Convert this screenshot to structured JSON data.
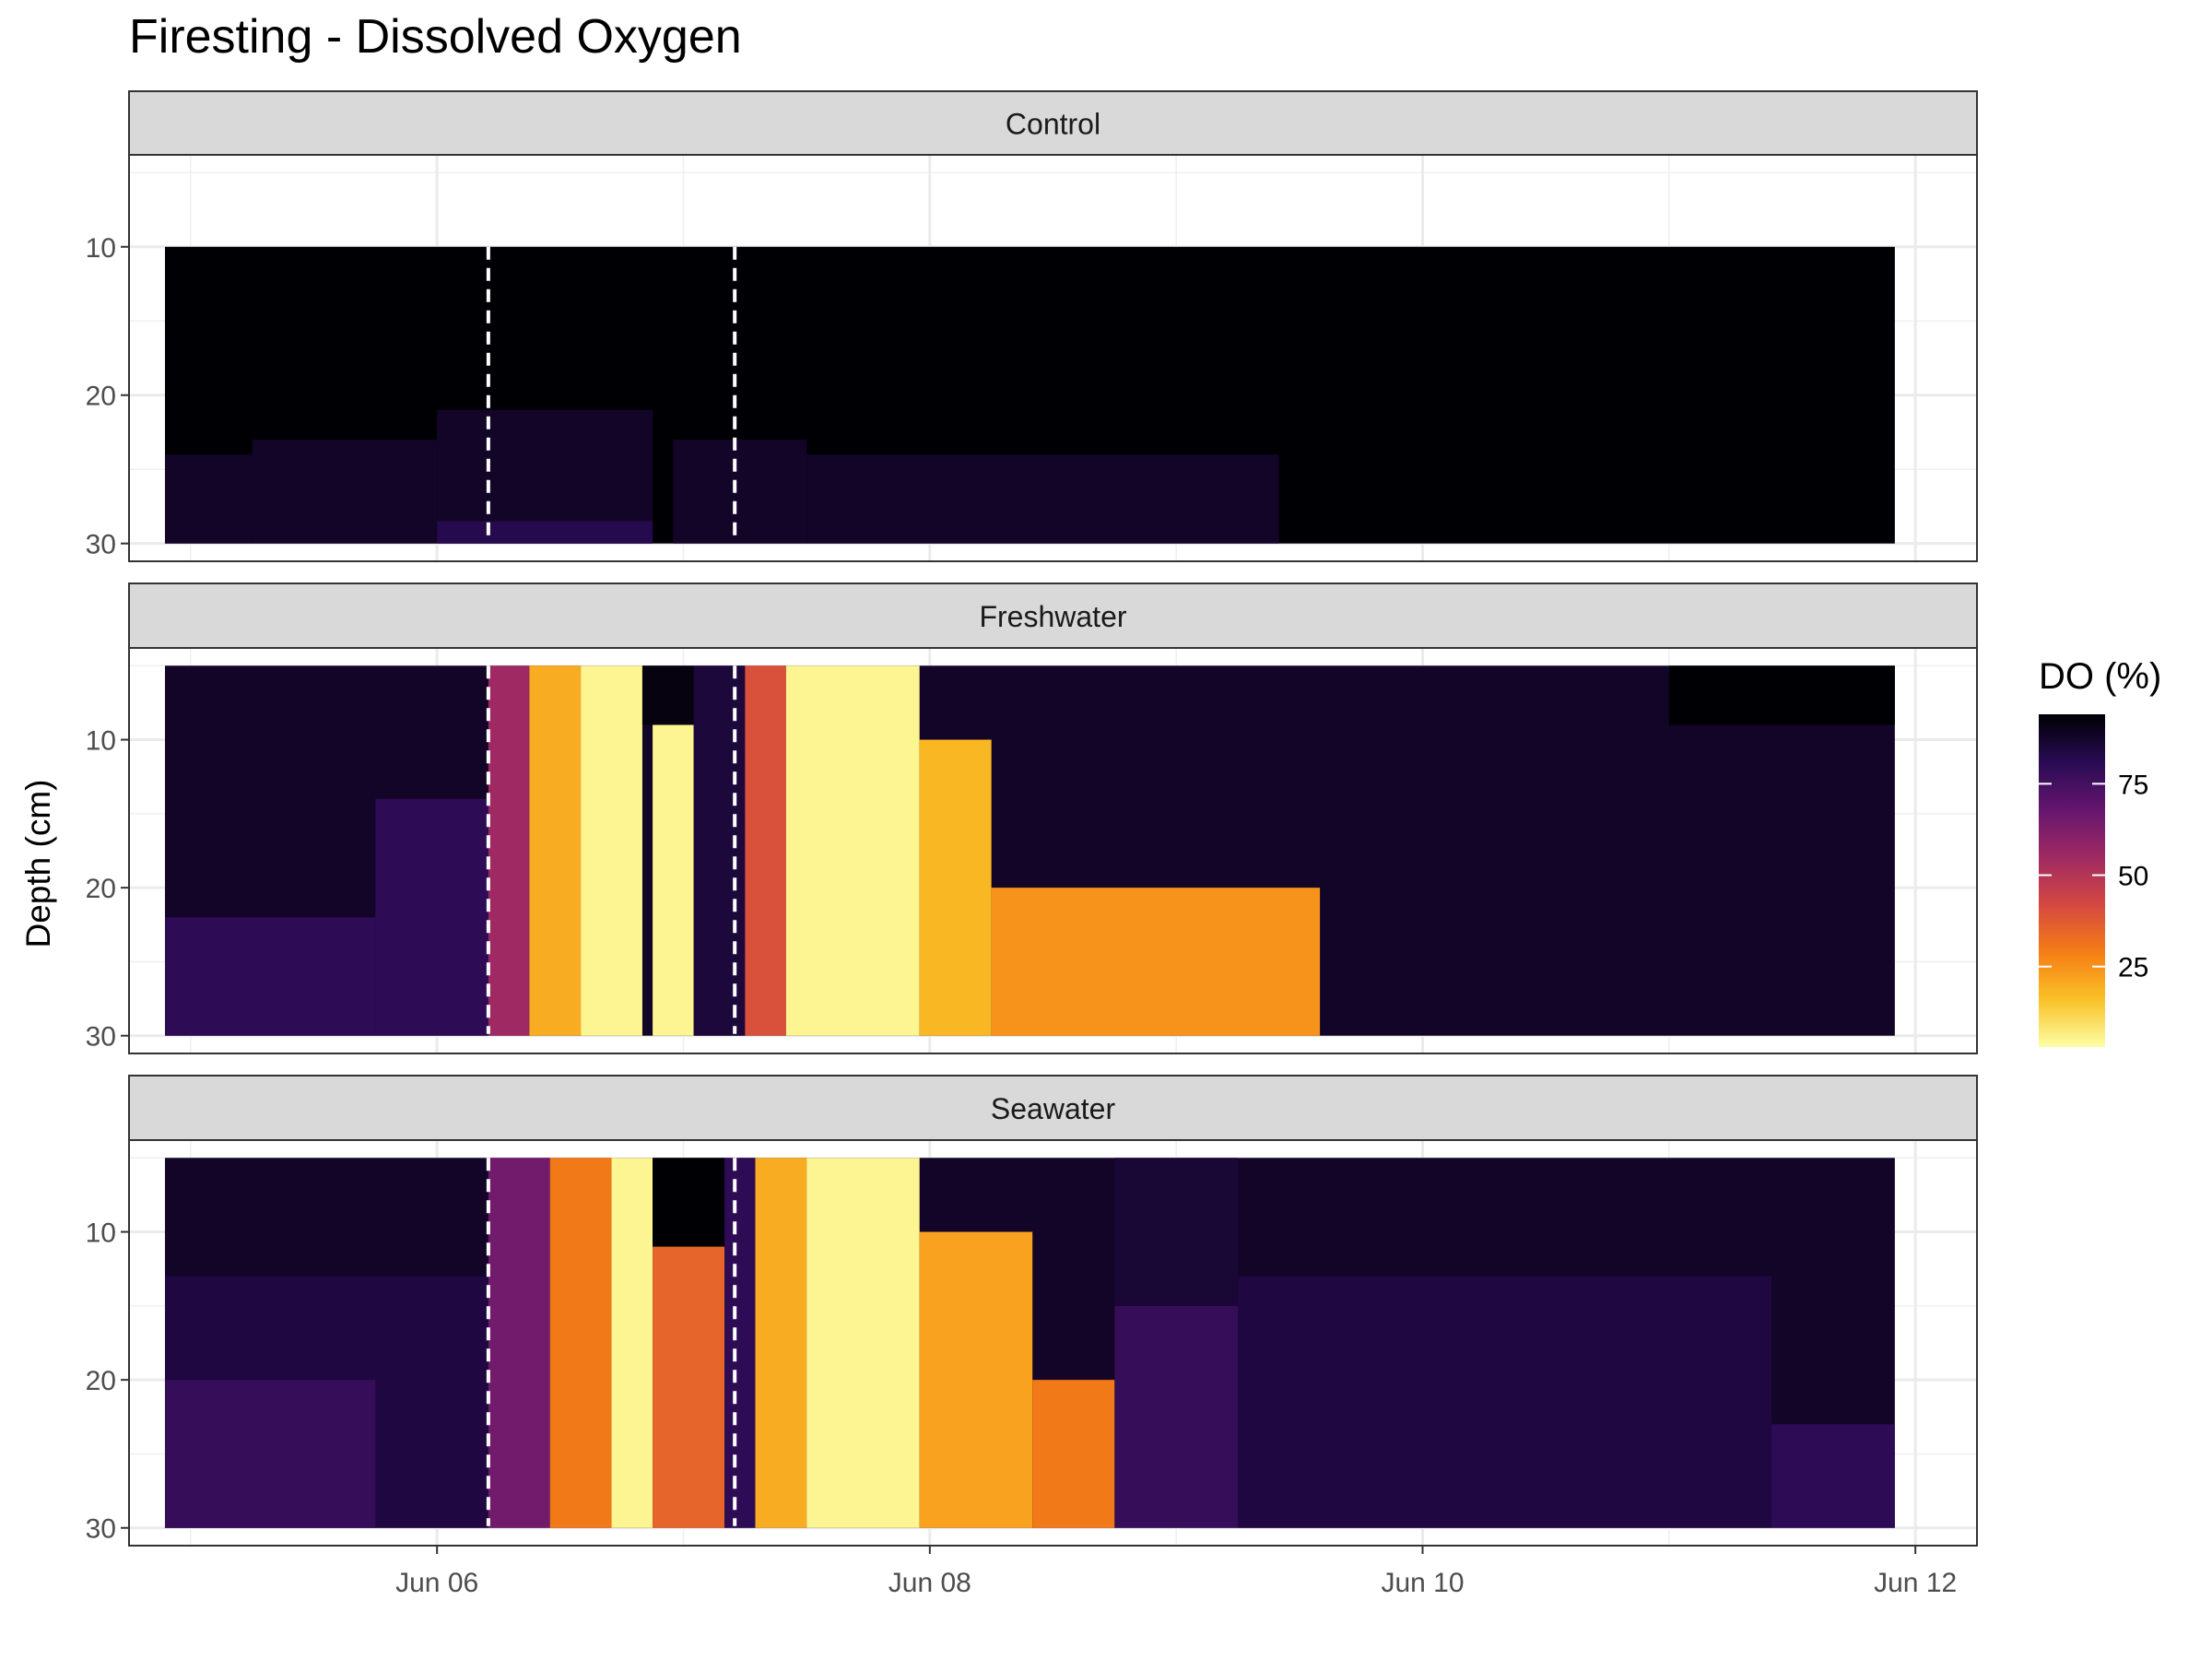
{
  "chart_data": {
    "type": "heatmap",
    "title": "Firesting - Dissolved Oxygen",
    "xlabel": "",
    "ylabel": "Depth (cm)",
    "x_axis": {
      "type": "date",
      "range": [
        "2023-06-04T18:00",
        "2023-06-12T06:00"
      ],
      "ticks": [
        {
          "value": "2023-06-06",
          "label": "Jun 06"
        },
        {
          "value": "2023-06-08",
          "label": "Jun 08"
        },
        {
          "value": "2023-06-10",
          "label": "Jun 10"
        },
        {
          "value": "2023-06-12",
          "label": "Jun 12"
        }
      ]
    },
    "y_axis": {
      "reversed": true,
      "range": [
        3.8,
        31.2
      ],
      "ticks": [
        10,
        20,
        30
      ]
    },
    "grid": true,
    "legend": {
      "title": "DO (%)",
      "position": "right",
      "scale": "inferno",
      "range": [
        3,
        94
      ],
      "ticks": [
        25,
        50,
        75
      ],
      "colors": [
        "#fcffa4",
        "#fac127",
        "#f57d15",
        "#d44842",
        "#9f2a63",
        "#65156e",
        "#280b53",
        "#000004"
      ]
    },
    "treatment_lines": [
      "2023-06-06T05:00",
      "2023-06-07T05:00"
    ],
    "data_extent": {
      "start": "2023-06-04T21:30",
      "end": "2023-06-11T22:00"
    },
    "facets": [
      {
        "label": "Control",
        "depth_range": [
          10,
          30
        ],
        "regions": [
          {
            "depth": [
              10,
              30
            ],
            "time": [
              "2023-06-04T21:30",
              "2023-06-11T22:00"
            ],
            "do": 94
          },
          {
            "depth": [
              24,
              30
            ],
            "time": [
              "2023-06-04T21:30",
              "2023-06-05T06:00"
            ],
            "do": 88
          },
          {
            "depth": [
              23,
              30
            ],
            "time": [
              "2023-06-05T06:00",
              "2023-06-06T00:00"
            ],
            "do": 88
          },
          {
            "depth": [
              21,
              30
            ],
            "time": [
              "2023-06-06T00:00",
              "2023-06-06T21:00"
            ],
            "do": 88
          },
          {
            "depth": [
              23,
              30
            ],
            "time": [
              "2023-06-06T23:00",
              "2023-06-07T12:00"
            ],
            "do": 88
          },
          {
            "depth": [
              24,
              30
            ],
            "time": [
              "2023-06-07T12:00",
              "2023-06-09T10:00"
            ],
            "do": 88
          },
          {
            "depth": [
              28.5,
              30
            ],
            "time": [
              "2023-06-06T00:00",
              "2023-06-06T21:00"
            ],
            "do": 82
          }
        ]
      },
      {
        "label": "Freshwater",
        "depth_range": [
          5,
          30
        ],
        "regions": [
          {
            "depth": [
              5,
              30
            ],
            "time": [
              "2023-06-04T21:30",
              "2023-06-11T22:00"
            ],
            "do": 88
          },
          {
            "depth": [
              5,
              9
            ],
            "time": [
              "2023-06-11T00:00",
              "2023-06-11T22:00"
            ],
            "do": 94
          },
          {
            "depth": [
              22,
              30
            ],
            "time": [
              "2023-06-04T21:30",
              "2023-06-05T18:00"
            ],
            "do": 80
          },
          {
            "depth": [
              14,
              30
            ],
            "time": [
              "2023-06-05T18:00",
              "2023-06-06T05:00"
            ],
            "do": 80
          },
          {
            "depth": [
              5,
              30
            ],
            "time": [
              "2023-06-06T05:00",
              "2023-06-06T09:00"
            ],
            "do": 55
          },
          {
            "depth": [
              5,
              30
            ],
            "time": [
              "2023-06-06T09:00",
              "2023-06-06T14:00"
            ],
            "do": 20
          },
          {
            "depth": [
              5,
              30
            ],
            "time": [
              "2023-06-06T14:00",
              "2023-06-06T20:00"
            ],
            "do": 5
          },
          {
            "depth": [
              5,
              9
            ],
            "time": [
              "2023-06-06T20:00",
              "2023-06-07T01:00"
            ],
            "do": 92
          },
          {
            "depth": [
              9,
              30
            ],
            "time": [
              "2023-06-06T21:00",
              "2023-06-07T01:00"
            ],
            "do": 5
          },
          {
            "depth": [
              5,
              30
            ],
            "time": [
              "2023-06-07T01:00",
              "2023-06-07T06:00"
            ],
            "do": 85
          },
          {
            "depth": [
              5,
              30
            ],
            "time": [
              "2023-06-07T06:00",
              "2023-06-07T10:00"
            ],
            "do": 40
          },
          {
            "depth": [
              5,
              30
            ],
            "time": [
              "2023-06-07T10:00",
              "2023-06-07T23:00"
            ],
            "do": 5
          },
          {
            "depth": [
              10,
              30
            ],
            "time": [
              "2023-06-07T23:00",
              "2023-06-08T06:00"
            ],
            "do": 18
          },
          {
            "depth": [
              20,
              30
            ],
            "time": [
              "2023-06-08T06:00",
              "2023-06-09T14:00"
            ],
            "do": 25
          }
        ]
      },
      {
        "label": "Seawater",
        "depth_range": [
          5,
          30
        ],
        "regions": [
          {
            "depth": [
              5,
              30
            ],
            "time": [
              "2023-06-04T21:30",
              "2023-06-11T22:00"
            ],
            "do": 88
          },
          {
            "depth": [
              13,
              30
            ],
            "time": [
              "2023-06-04T21:30",
              "2023-06-06T05:00"
            ],
            "do": 84
          },
          {
            "depth": [
              20,
              30
            ],
            "time": [
              "2023-06-04T21:30",
              "2023-06-05T18:00"
            ],
            "do": 78
          },
          {
            "depth": [
              5,
              30
            ],
            "time": [
              "2023-06-06T05:00",
              "2023-06-06T11:00"
            ],
            "do": 65
          },
          {
            "depth": [
              5,
              30
            ],
            "time": [
              "2023-06-06T11:00",
              "2023-06-06T17:00"
            ],
            "do": 30
          },
          {
            "depth": [
              5,
              30
            ],
            "time": [
              "2023-06-06T17:00",
              "2023-06-06T21:00"
            ],
            "do": 5
          },
          {
            "depth": [
              5,
              11
            ],
            "time": [
              "2023-06-06T21:00",
              "2023-06-07T04:00"
            ],
            "do": 94
          },
          {
            "depth": [
              11,
              30
            ],
            "time": [
              "2023-06-06T21:00",
              "2023-06-07T04:00"
            ],
            "do": 35
          },
          {
            "depth": [
              5,
              30
            ],
            "time": [
              "2023-06-07T04:00",
              "2023-06-07T07:00"
            ],
            "do": 80
          },
          {
            "depth": [
              5,
              30
            ],
            "time": [
              "2023-06-07T07:00",
              "2023-06-07T12:00"
            ],
            "do": 20
          },
          {
            "depth": [
              5,
              30
            ],
            "time": [
              "2023-06-07T12:00",
              "2023-06-07T23:00"
            ],
            "do": 5
          },
          {
            "depth": [
              10,
              30
            ],
            "time": [
              "2023-06-07T23:00",
              "2023-06-08T10:00"
            ],
            "do": 22
          },
          {
            "depth": [
              20,
              30
            ],
            "time": [
              "2023-06-08T10:00",
              "2023-06-08T18:00"
            ],
            "do": 30
          },
          {
            "depth": [
              5,
              15
            ],
            "time": [
              "2023-06-08T18:00",
              "2023-06-09T06:00"
            ],
            "do": 86
          },
          {
            "depth": [
              15,
              30
            ],
            "time": [
              "2023-06-08T18:00",
              "2023-06-09T06:00"
            ],
            "do": 78
          },
          {
            "depth": [
              13,
              30
            ],
            "time": [
              "2023-06-09T06:00",
              "2023-06-11T10:00"
            ],
            "do": 84
          },
          {
            "depth": [
              23,
              30
            ],
            "time": [
              "2023-06-11T10:00",
              "2023-06-11T22:00"
            ],
            "do": 80
          }
        ]
      }
    ]
  }
}
